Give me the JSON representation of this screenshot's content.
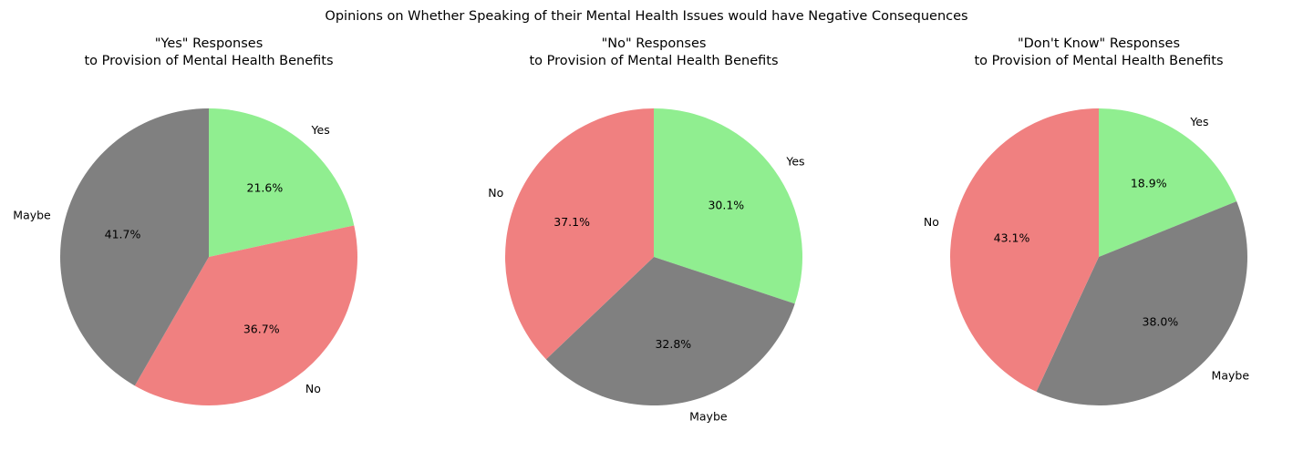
{
  "suptitle": "Opinions on Whether Speaking of their Mental Health Issues would have Negative Consequences",
  "colors": {
    "Yes": "#90ee90",
    "No": "#f08080",
    "Maybe": "#808080"
  },
  "chart_data": [
    {
      "type": "pie",
      "title": [
        "\"Yes\" Responses",
        "to Provision of Mental Health Benefits"
      ],
      "slices": [
        {
          "label": "Yes",
          "value": 21.6,
          "display": "21.6%",
          "color": "#90ee90"
        },
        {
          "label": "No",
          "value": 36.7,
          "display": "36.7%",
          "color": "#f08080"
        },
        {
          "label": "Maybe",
          "value": 41.7,
          "display": "41.7%",
          "color": "#808080"
        }
      ],
      "start_angle": 90,
      "direction": "clockwise"
    },
    {
      "type": "pie",
      "title": [
        "\"No\" Responses",
        "to Provision of Mental Health Benefits"
      ],
      "slices": [
        {
          "label": "Yes",
          "value": 30.1,
          "display": "30.1%",
          "color": "#90ee90"
        },
        {
          "label": "Maybe",
          "value": 32.8,
          "display": "32.8%",
          "color": "#808080"
        },
        {
          "label": "No",
          "value": 37.1,
          "display": "37.1%",
          "color": "#f08080"
        }
      ],
      "start_angle": 90,
      "direction": "clockwise"
    },
    {
      "type": "pie",
      "title": [
        "\"Don't Know\" Responses",
        "to Provision of Mental Health Benefits"
      ],
      "slices": [
        {
          "label": "Yes",
          "value": 18.9,
          "display": "18.9%",
          "color": "#90ee90"
        },
        {
          "label": "Maybe",
          "value": 38.0,
          "display": "38.0%",
          "color": "#808080"
        },
        {
          "label": "No",
          "value": 43.1,
          "display": "43.1%",
          "color": "#f08080"
        }
      ],
      "start_angle": 90,
      "direction": "clockwise"
    }
  ]
}
